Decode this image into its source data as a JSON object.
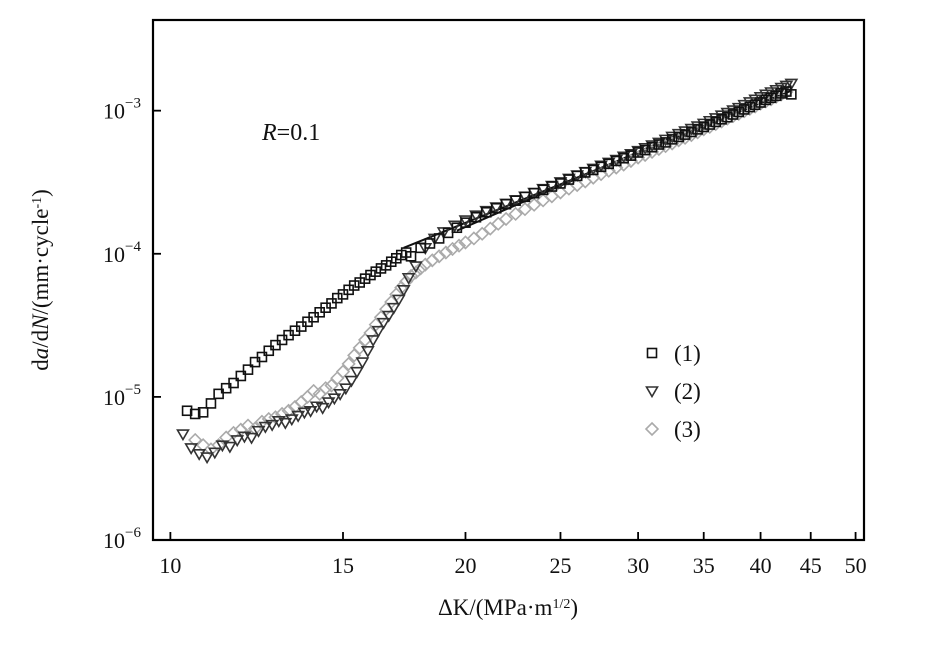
{
  "chart_data": {
    "type": "scatter",
    "title": "",
    "xlabel_parts": {
      "pre": "ΔK/(MPa·m",
      "sup": "1/2",
      "post": ")"
    },
    "ylabel_parts": {
      "pre": "d",
      "i1": "a",
      "mid": "/d",
      "i2": "N",
      "mid2": "/(mm·cycle",
      "sup": "-1",
      "post": ")"
    },
    "annotation": {
      "italic": "R",
      "rest": "=0.1"
    },
    "x_scale": "log",
    "y_scale": "log",
    "xlim": [
      9.6,
      51
    ],
    "ylim": [
      1e-06,
      0.0043
    ],
    "x_ticks": [
      {
        "value": 10,
        "label": "10"
      },
      {
        "value": 15,
        "label": "15"
      },
      {
        "value": 20,
        "label": "20"
      },
      {
        "value": 25,
        "label": "25"
      },
      {
        "value": 30,
        "label": "30"
      },
      {
        "value": 35,
        "label": "35"
      },
      {
        "value": 40,
        "label": "40"
      },
      {
        "value": 45,
        "label": "45"
      },
      {
        "value": 50,
        "label": "50"
      }
    ],
    "y_ticks": [
      {
        "value": 1e-06,
        "base": "10",
        "exp": "−6"
      },
      {
        "value": 1e-05,
        "base": "10",
        "exp": "−5"
      },
      {
        "value": 0.0001,
        "base": "10",
        "exp": "−4"
      },
      {
        "value": 0.001,
        "base": "10",
        "exp": "−3"
      }
    ],
    "grid": false,
    "legend_position": "lower-right",
    "series": [
      {
        "name": "(1)",
        "marker": "square",
        "color": "#111111",
        "x": [
          10.4,
          10.6,
          10.8,
          11.0,
          11.2,
          11.4,
          11.6,
          11.8,
          12.0,
          12.2,
          12.4,
          12.6,
          12.8,
          13.0,
          13.2,
          13.4,
          13.6,
          13.8,
          14.0,
          14.2,
          14.4,
          14.6,
          14.8,
          15.0,
          15.2,
          15.4,
          15.6,
          15.8,
          16.0,
          16.2,
          16.4,
          16.6,
          16.8,
          17.0,
          17.2,
          17.4,
          17.6,
          18.0,
          18.4,
          18.8,
          19.2,
          19.6,
          20.0,
          20.5,
          21.0,
          21.5,
          22.0,
          22.5,
          23.0,
          23.5,
          24.0,
          24.5,
          25.0,
          25.5,
          26.0,
          26.5,
          27.0,
          27.5,
          28.0,
          28.5,
          29.0,
          29.5,
          30.0,
          30.5,
          31.0,
          31.5,
          32.0,
          32.5,
          33.0,
          33.5,
          34.0,
          34.5,
          35.0,
          35.5,
          36.0,
          36.5,
          37.0,
          37.5,
          38.0,
          38.5,
          39.0,
          39.5,
          40.0,
          40.5,
          41.0,
          41.5,
          42.0,
          42.5,
          43.0
        ],
        "y": [
          8e-06,
          7.6e-06,
          7.8e-06,
          9e-06,
          1.05e-05,
          1.15e-05,
          1.25e-05,
          1.4e-05,
          1.55e-05,
          1.75e-05,
          1.9e-05,
          2.1e-05,
          2.3e-05,
          2.5e-05,
          2.7e-05,
          2.9e-05,
          3.1e-05,
          3.35e-05,
          3.6e-05,
          3.9e-05,
          4.2e-05,
          4.5e-05,
          4.9e-05,
          5.2e-05,
          5.6e-05,
          6e-05,
          6.3e-05,
          6.7e-05,
          7.1e-05,
          7.5e-05,
          7.9e-05,
          8.3e-05,
          8.8e-05,
          9.3e-05,
          9.8e-05,
          0.000102,
          9.6e-05,
          0.00011,
          0.000118,
          0.000128,
          0.00014,
          0.000152,
          0.000165,
          0.00018,
          0.000195,
          0.000208,
          0.000222,
          0.000235,
          0.00025,
          0.000265,
          0.00028,
          0.000295,
          0.00031,
          0.00033,
          0.00035,
          0.00037,
          0.000385,
          0.000405,
          0.000425,
          0.000445,
          0.000465,
          0.000485,
          0.00051,
          0.00053,
          0.000555,
          0.00058,
          0.0006,
          0.00063,
          0.000655,
          0.00068,
          0.00071,
          0.00074,
          0.00077,
          0.0008,
          0.000835,
          0.00087,
          0.0009,
          0.00094,
          0.00098,
          0.00102,
          0.00106,
          0.0011,
          0.00114,
          0.00119,
          0.00123,
          0.00127,
          0.00132,
          0.00136,
          0.0013
        ]
      },
      {
        "name": "(2)",
        "marker": "triangle-down",
        "color": "#333333",
        "x": [
          10.3,
          10.5,
          10.7,
          10.9,
          11.1,
          11.3,
          11.5,
          11.7,
          11.9,
          12.1,
          12.3,
          12.5,
          12.7,
          12.9,
          13.1,
          13.3,
          13.5,
          13.7,
          13.9,
          14.1,
          14.3,
          14.5,
          14.7,
          14.9,
          15.1,
          15.3,
          15.5,
          15.7,
          15.9,
          16.1,
          16.3,
          16.5,
          16.7,
          16.9,
          17.1,
          17.3,
          17.5,
          17.8,
          18.2,
          18.6,
          19.0,
          19.5,
          20.0,
          20.5,
          21.0,
          21.5,
          22.0,
          22.5,
          23.0,
          23.5,
          24.0,
          24.5,
          25.0,
          25.5,
          26.0,
          26.5,
          27.0,
          27.5,
          28.0,
          28.5,
          29.0,
          29.5,
          30.0,
          30.5,
          31.0,
          31.5,
          32.0,
          32.5,
          33.0,
          33.5,
          34.0,
          34.5,
          35.0,
          35.5,
          36.0,
          36.5,
          37.0,
          37.5,
          38.0,
          38.5,
          39.0,
          39.5,
          40.0,
          40.5,
          41.0,
          41.5,
          42.0,
          42.5,
          43.0
        ],
        "y": [
          5.5e-06,
          4.4e-06,
          4e-06,
          3.8e-06,
          4.1e-06,
          4.6e-06,
          4.5e-06,
          5e-06,
          5.3e-06,
          5.2e-06,
          5.8e-06,
          6.2e-06,
          6.4e-06,
          6.8e-06,
          6.6e-06,
          7e-06,
          7.4e-06,
          7.8e-06,
          8e-06,
          8.6e-06,
          8.4e-06,
          9.2e-06,
          9.8e-06,
          1.05e-05,
          1.15e-05,
          1.3e-05,
          1.5e-05,
          1.75e-05,
          2.1e-05,
          2.5e-05,
          2.9e-05,
          3.3e-05,
          3.7e-05,
          4.2e-05,
          4.8e-05,
          5.6e-05,
          6.8e-05,
          8.2e-05,
          0.00011,
          0.000128,
          0.000142,
          0.000158,
          0.000172,
          0.000186,
          0.0002,
          0.000212,
          0.000225,
          0.000238,
          0.000252,
          0.000268,
          0.000285,
          0.0003,
          0.000318,
          0.000336,
          0.000355,
          0.000375,
          0.000395,
          0.000415,
          0.000435,
          0.000455,
          0.00048,
          0.0005,
          0.000525,
          0.00055,
          0.000575,
          0.0006,
          0.00063,
          0.00066,
          0.00069,
          0.00072,
          0.00075,
          0.00078,
          0.000815,
          0.00085,
          0.00089,
          0.00093,
          0.00097,
          0.00101,
          0.00105,
          0.0011,
          0.00115,
          0.0012,
          0.00125,
          0.0013,
          0.00135,
          0.0014,
          0.00145,
          0.0015,
          0.00155
        ]
      },
      {
        "name": "(3)",
        "marker": "diamond",
        "color": "#aaaaaa",
        "x": [
          10.6,
          10.8,
          11.0,
          11.2,
          11.4,
          11.6,
          11.8,
          12.0,
          12.2,
          12.4,
          12.6,
          12.8,
          13.0,
          13.2,
          13.4,
          13.6,
          13.8,
          14.0,
          14.2,
          14.4,
          14.6,
          14.8,
          15.0,
          15.2,
          15.4,
          15.6,
          15.8,
          16.0,
          16.2,
          16.4,
          16.6,
          16.8,
          17.0,
          17.2,
          17.4,
          17.6,
          17.8,
          18.0,
          18.2,
          18.5,
          18.8,
          19.1,
          19.4,
          19.7,
          20.0,
          20.4,
          20.8,
          21.2,
          21.6,
          22.0,
          22.5,
          23.0,
          23.5,
          24.0,
          24.5,
          25.0,
          25.5,
          26.0,
          26.5,
          27.0,
          27.5,
          28.0,
          28.5,
          29.0,
          29.5,
          30.0,
          30.5,
          31.0,
          31.5,
          32.0,
          32.5,
          33.0,
          33.5,
          34.0,
          34.5,
          35.0,
          35.5,
          36.0,
          36.5,
          37.0,
          37.5,
          38.0,
          38.5,
          39.0,
          39.5,
          40.0,
          40.5,
          41.0,
          41.5,
          42.0,
          42.5
        ],
        "y": [
          5e-06,
          4.6e-06,
          4.3e-06,
          4.6e-06,
          5.2e-06,
          5.6e-06,
          5.9e-06,
          6.3e-06,
          6e-06,
          6.7e-06,
          7e-06,
          7.2e-06,
          7.6e-06,
          8e-06,
          8.5e-06,
          9.2e-06,
          1e-05,
          1.1e-05,
          1.05e-05,
          1.15e-05,
          1.2e-05,
          1.35e-05,
          1.5e-05,
          1.7e-05,
          1.95e-05,
          2.2e-05,
          2.5e-05,
          2.8e-05,
          3.2e-05,
          3.6e-05,
          4.1e-05,
          4.6e-05,
          5.2e-05,
          5.8e-05,
          6.4e-05,
          7e-05,
          7.4e-05,
          7.9e-05,
          8.4e-05,
          9e-05,
          9.6e-05,
          0.000102,
          0.000108,
          0.000114,
          0.00012,
          0.000128,
          0.000138,
          0.00015,
          0.000162,
          0.000175,
          0.00019,
          0.000205,
          0.00022,
          0.000236,
          0.000252,
          0.000268,
          0.000285,
          0.000302,
          0.00032,
          0.00034,
          0.00036,
          0.00038,
          0.0004,
          0.00042,
          0.000445,
          0.00047,
          0.00049,
          0.000515,
          0.00054,
          0.000565,
          0.00059,
          0.00062,
          0.000645,
          0.000675,
          0.000705,
          0.00074,
          0.00077,
          0.000805,
          0.00084,
          0.00088,
          0.000915,
          0.00095,
          0.00099,
          0.00103,
          0.00107,
          0.00112,
          0.00116,
          0.0012,
          0.00125,
          0.0013,
          0.00135
        ]
      }
    ],
    "fit_lines": [
      {
        "name": "",
        "x": [
          17.3,
          43.0
        ],
        "y": [
          0.00011,
          0.00138
        ]
      },
      {
        "name": "",
        "x": [
          19.6,
          43.0
        ],
        "y": [
          0.000145,
          0.0015
        ]
      }
    ]
  }
}
